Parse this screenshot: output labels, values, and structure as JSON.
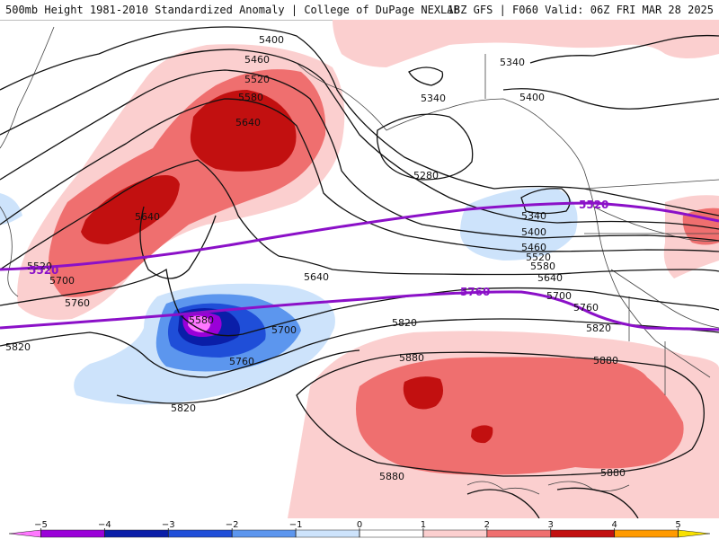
{
  "header": {
    "left_title": "500mb Height 1981-2010 Standardized Anomaly | College of DuPage NEXLAB",
    "right_title": "18Z GFS | F060 Valid: 06Z FRI MAR 28 2025"
  },
  "map": {
    "contour_labels": [
      "5400",
      "5460",
      "5520",
      "5580",
      "5640",
      "5640",
      "5520",
      "5700",
      "5760",
      "5820",
      "5640",
      "5580",
      "5700",
      "5760",
      "5820",
      "5340",
      "5280",
      "5340",
      "5400",
      "5340",
      "5400",
      "5460",
      "5520",
      "5580",
      "5640",
      "5700",
      "5760",
      "5820",
      "5880",
      "5880",
      "5880",
      "5880",
      "5820"
    ],
    "highlight_labels": [
      "5520",
      "5520",
      "5760"
    ],
    "colors": {
      "contour": "#111111",
      "highlight_contour": "#8b10c8",
      "coast": "#444444"
    }
  },
  "legend": {
    "tick_labels": [
      "−5",
      "−4",
      "−3",
      "−2",
      "−1",
      "0",
      "1",
      "2",
      "3",
      "4",
      "5"
    ],
    "tick_values": [
      -5,
      -4,
      -3,
      -2,
      -1,
      0,
      1,
      2,
      3,
      4,
      5
    ],
    "bins": [
      {
        "from": -5.5,
        "to": -5,
        "color": "#ff77ff"
      },
      {
        "from": -5,
        "to": -4,
        "color": "#9a00d8"
      },
      {
        "from": -4,
        "to": -3,
        "color": "#0a1ea8"
      },
      {
        "from": -3,
        "to": -2,
        "color": "#1f4ed8"
      },
      {
        "from": -2,
        "to": -1,
        "color": "#5c96ee"
      },
      {
        "from": -1,
        "to": 0,
        "color": "#cde3fb"
      },
      {
        "from": 0,
        "to": 1,
        "color": "#ffffff"
      },
      {
        "from": 1,
        "to": 2,
        "color": "#fbcfcf"
      },
      {
        "from": 2,
        "to": 3,
        "color": "#ef6f6f"
      },
      {
        "from": 3,
        "to": 4,
        "color": "#c21010"
      },
      {
        "from": 4,
        "to": 5,
        "color": "#ff9a00"
      },
      {
        "from": 5,
        "to": 5.5,
        "color": "#f7e000"
      }
    ]
  }
}
